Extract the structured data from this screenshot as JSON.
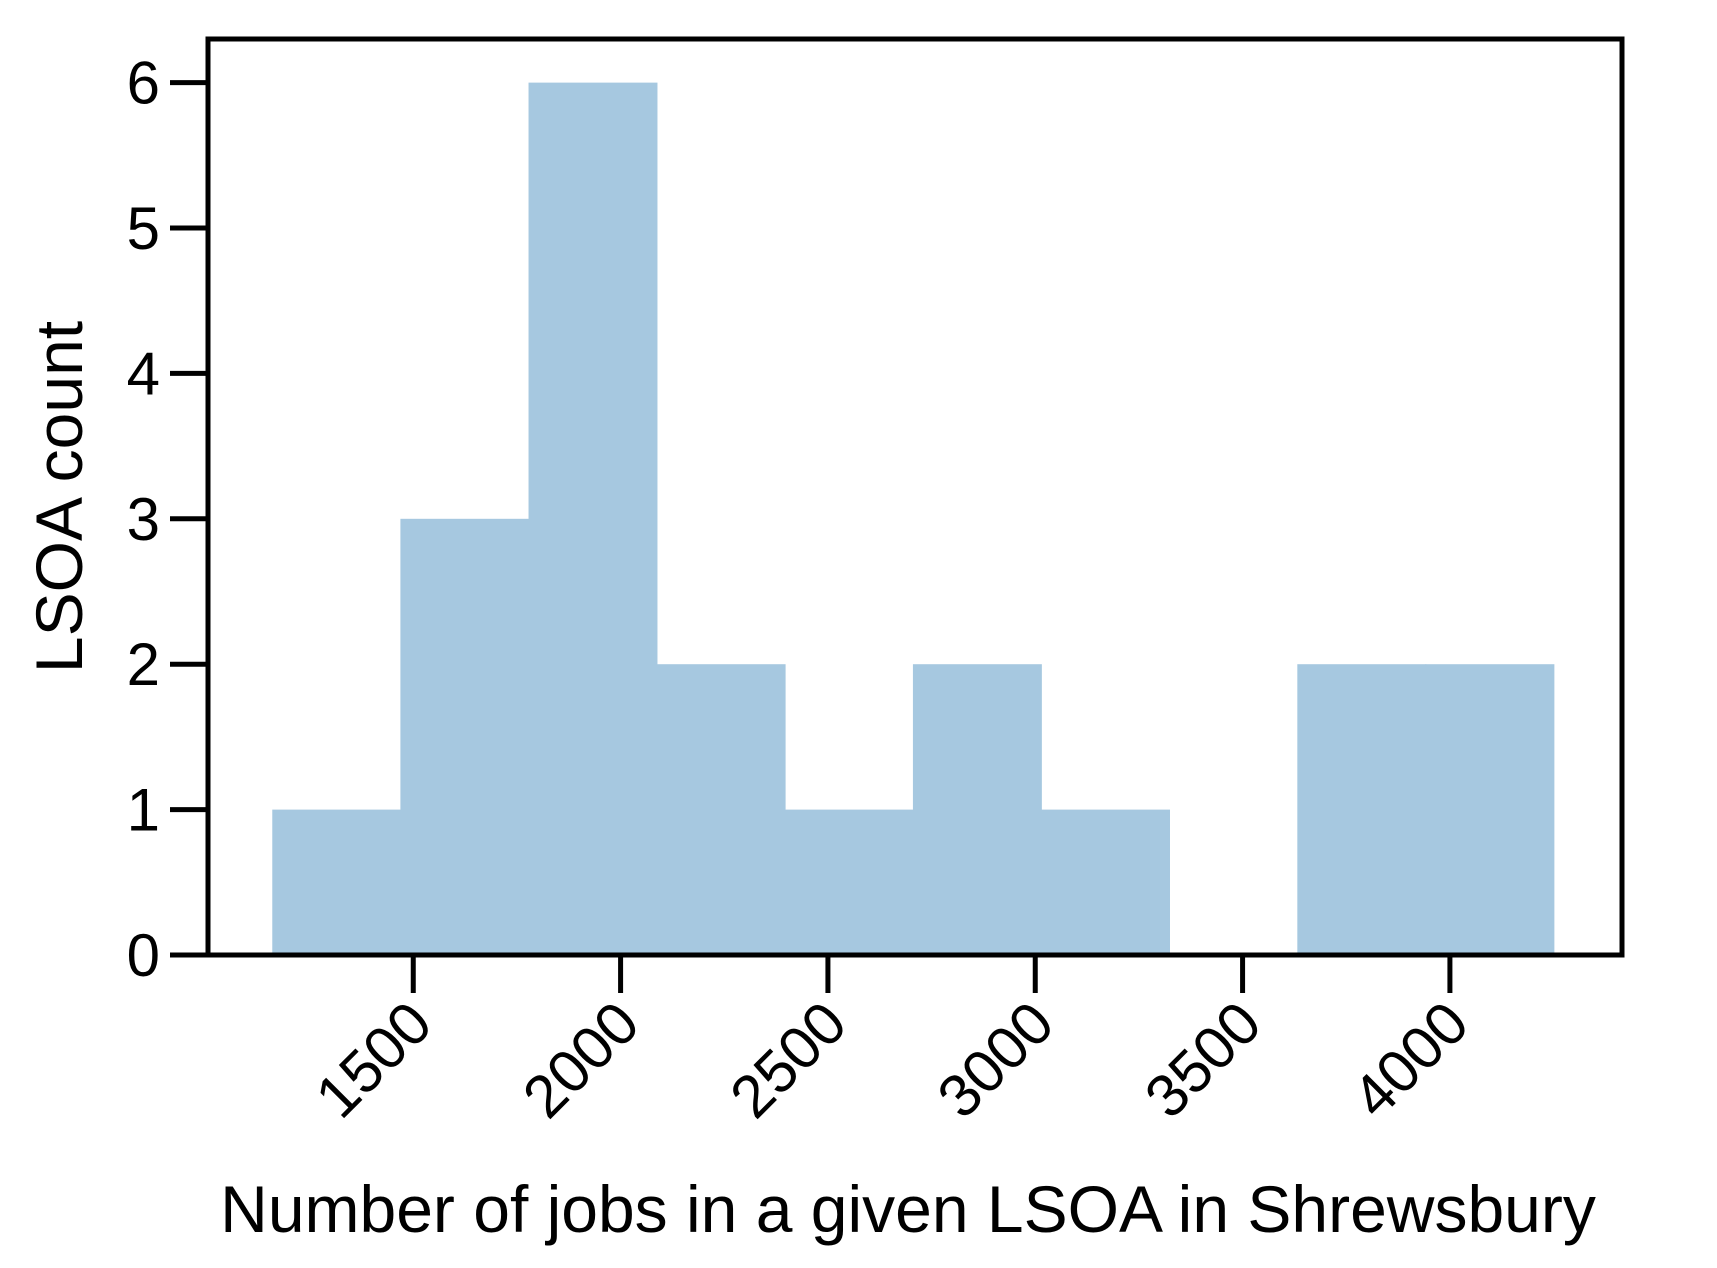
{
  "chart_data": {
    "type": "bar",
    "subtype": "histogram",
    "title": "",
    "xlabel": "Number of jobs in a given LSOA in Shrewsbury",
    "ylabel": "LSOA count",
    "bin_edges": [
      1160,
      1469,
      1778,
      2087,
      2396,
      2705,
      3014,
      3323,
      3632,
      3941,
      4250
    ],
    "values": [
      1,
      3,
      6,
      2,
      1,
      2,
      1,
      0,
      2,
      2
    ],
    "xlim": [
      1005,
      4415
    ],
    "ylim": [
      0,
      6.3
    ],
    "xticks": [
      1500,
      2000,
      2500,
      3000,
      3500,
      4000
    ],
    "xtick_labels": [
      "1500",
      "2000",
      "2500",
      "3000",
      "3500",
      "4000"
    ],
    "yticks": [
      0,
      1,
      2,
      3,
      4,
      5,
      6
    ],
    "ytick_labels": [
      "0",
      "1",
      "2",
      "3",
      "4",
      "5",
      "6"
    ],
    "bar_color": "#a6c8e0",
    "grid": false,
    "legend": "none"
  }
}
